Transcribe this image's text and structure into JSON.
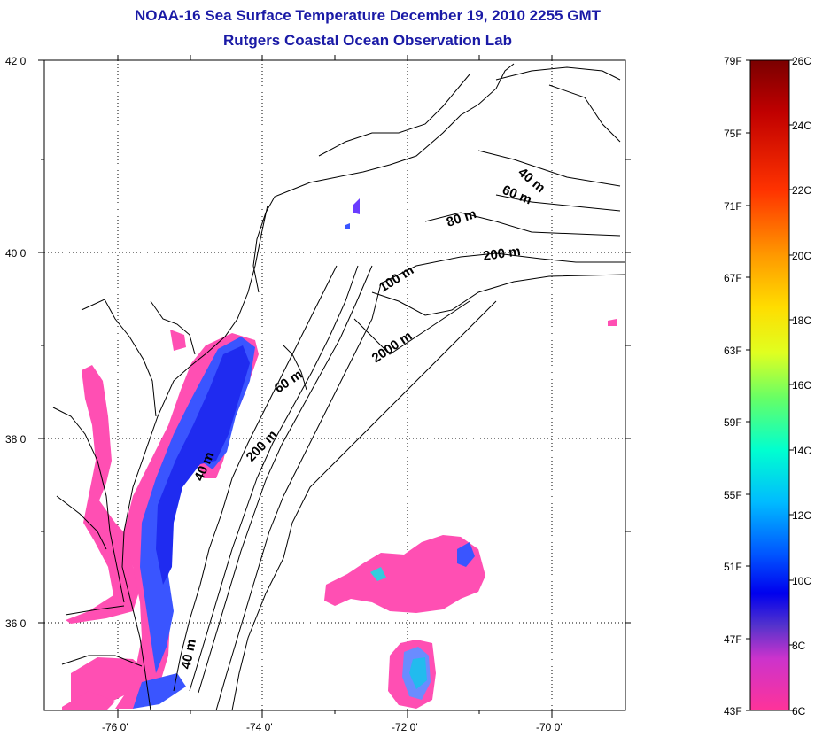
{
  "title": "NOAA-16 Sea Surface Temperature December 19, 2010 2255 GMT",
  "subtitle": "Rutgers Coastal Ocean Observation Lab",
  "map": {
    "lat_labels": [
      "42 0'",
      "40 0'",
      "38 0'",
      "36 0'"
    ],
    "lon_labels": [
      "-76 0'",
      "-74 0'",
      "-72 0'",
      "-70 0'"
    ],
    "isobath_labels": [
      "40 m",
      "60 m",
      "80 m",
      "200 m",
      "100 m",
      "2000 m",
      "60 m",
      "200 m",
      "40 m",
      "40 m"
    ],
    "grid": true
  },
  "colorbar": {
    "f_labels": [
      "79F",
      "75F",
      "71F",
      "67F",
      "63F",
      "59F",
      "55F",
      "51F",
      "47F",
      "43F"
    ],
    "c_labels": [
      "26C",
      "24C",
      "22C",
      "20C",
      "18C",
      "16C",
      "14C",
      "12C",
      "10C",
      "8C",
      "6C"
    ],
    "colors": [
      "#7a0000",
      "#cc0000",
      "#ff3300",
      "#ff8800",
      "#ffcc00",
      "#ffff00",
      "#99ff33",
      "#33ff99",
      "#00ffff",
      "#0099ff",
      "#0000ff",
      "#6633cc",
      "#ff33cc",
      "#ff3399"
    ]
  }
}
